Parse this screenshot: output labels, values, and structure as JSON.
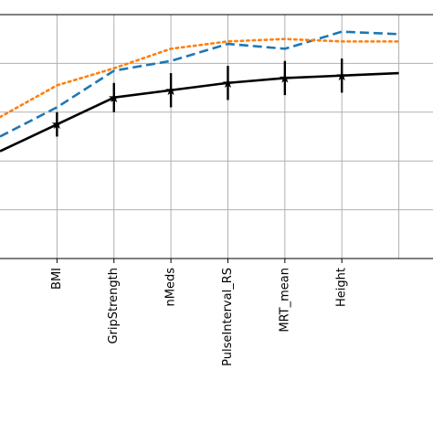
{
  "chart_data": {
    "type": "line",
    "title": "",
    "xlabel": "",
    "ylabel": "",
    "categories": [
      "BMI",
      "GripStrength",
      "nMeds",
      "PulseInterval_RS",
      "MRT_mean",
      "Height"
    ],
    "x": [
      0,
      1,
      2,
      3,
      4,
      5,
      6,
      7
    ],
    "xlim": [
      0.0,
      7.6
    ],
    "ylim": [
      0,
      1
    ],
    "grid": true,
    "series": [
      {
        "style": "solid-with-errorbars",
        "color": "#000000",
        "x": [
          0,
          1,
          2,
          3,
          4,
          5,
          6,
          7
        ],
        "values": [
          0.44,
          0.55,
          0.66,
          0.69,
          0.72,
          0.74,
          0.75,
          0.76
        ],
        "errors": [
          null,
          0.05,
          0.06,
          0.07,
          0.07,
          0.07,
          0.07,
          null
        ]
      },
      {
        "style": "dashed",
        "color": "#1f77b4",
        "x": [
          0,
          1,
          2,
          3,
          4,
          5,
          6,
          7
        ],
        "values": [
          0.5,
          0.62,
          0.77,
          0.81,
          0.88,
          0.86,
          0.93,
          0.92
        ]
      },
      {
        "style": "dotted",
        "color": "#ff7f0e",
        "x": [
          0,
          1,
          2,
          3,
          4,
          5,
          6,
          7
        ],
        "values": [
          0.58,
          0.71,
          0.78,
          0.86,
          0.89,
          0.9,
          0.89,
          0.89
        ]
      }
    ]
  }
}
